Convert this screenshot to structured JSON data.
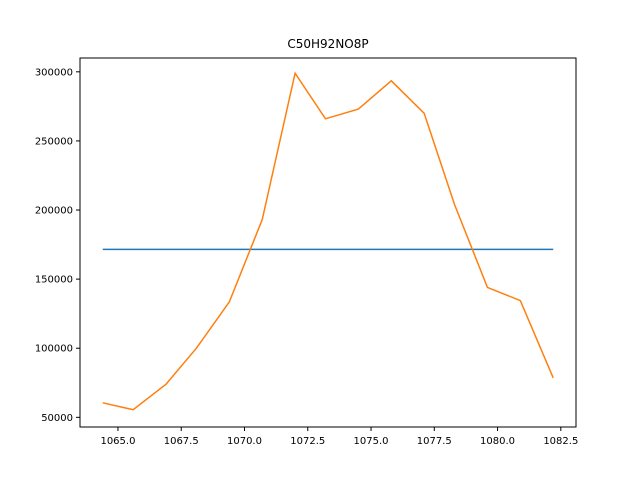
{
  "chart_data": {
    "type": "line",
    "title": "C50H92NO8P",
    "xlabel": "",
    "ylabel": "",
    "xlim": [
      1063.5,
      1083.1
    ],
    "ylim": [
      43000,
      310000
    ],
    "xticks": [
      1065.0,
      1067.5,
      1070.0,
      1072.5,
      1075.0,
      1077.5,
      1080.0,
      1082.5
    ],
    "xtick_labels": [
      "1065.0",
      "1067.5",
      "1070.0",
      "1072.5",
      "1075.0",
      "1077.5",
      "1080.0",
      "1082.5"
    ],
    "yticks": [
      50000,
      100000,
      150000,
      200000,
      250000,
      300000
    ],
    "ytick_labels": [
      "50000",
      "100000",
      "150000",
      "200000",
      "250000",
      "300000"
    ],
    "grid": false,
    "series": [
      {
        "color": "#1f77b4",
        "x": [
          1064.4,
          1082.2
        ],
        "y": [
          171500,
          171500
        ]
      },
      {
        "color": "#ff7f0e",
        "x": [
          1064.4,
          1065.6,
          1066.9,
          1068.1,
          1069.4,
          1070.7,
          1072.0,
          1073.2,
          1074.5,
          1075.8,
          1077.1,
          1078.3,
          1079.6,
          1080.9,
          1082.2
        ],
        "y": [
          60500,
          55500,
          74000,
          100000,
          133500,
          193000,
          299000,
          266000,
          273000,
          293500,
          270000,
          204000,
          144000,
          134500,
          78500
        ]
      }
    ]
  }
}
